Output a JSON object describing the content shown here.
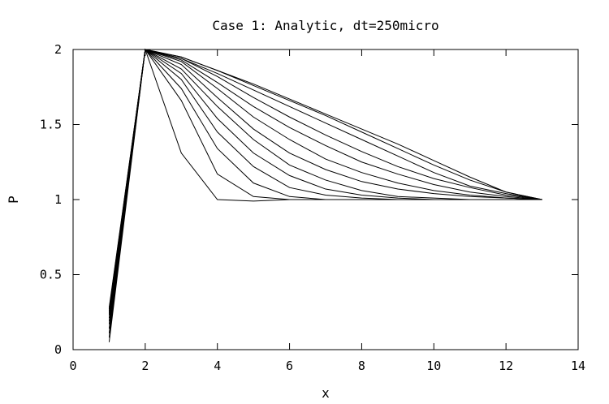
{
  "chart_data": {
    "type": "line",
    "title": "Case 1: Analytic, dt=250micro",
    "xlabel": "x",
    "ylabel": "P",
    "xlim": [
      0,
      14
    ],
    "ylim": [
      0,
      2
    ],
    "xticks": [
      0,
      2,
      4,
      6,
      8,
      10,
      12,
      14
    ],
    "xtick_labels": [
      "0",
      "2",
      "4",
      "6",
      "8",
      "10",
      "12",
      "14"
    ],
    "yticks": [
      0,
      0.5,
      1,
      1.5,
      2
    ],
    "ytick_labels": [
      "0",
      "0.5",
      "1",
      "1.5",
      "2"
    ],
    "grid": false,
    "legend": "none",
    "line_color": "#000000",
    "series": [
      {
        "x": [
          1,
          2,
          3,
          4,
          5,
          6,
          7,
          8,
          9,
          10,
          11,
          12,
          13
        ],
        "y": [
          0.05,
          2.0,
          1.31,
          1.0,
          0.99,
          1.0,
          1.0,
          1.0,
          1.0,
          1.0,
          1.0,
          1.0,
          1.0
        ]
      },
      {
        "x": [
          1,
          2,
          3,
          4,
          5,
          6,
          7,
          8,
          9,
          10,
          11,
          12,
          13
        ],
        "y": [
          0.08,
          2.0,
          1.66,
          1.17,
          1.02,
          1.0,
          1.0,
          1.0,
          1.0,
          1.0,
          1.0,
          1.0,
          1.0
        ]
      },
      {
        "x": [
          1,
          2,
          3,
          4,
          5,
          6,
          7,
          8,
          9,
          10,
          11,
          12,
          13
        ],
        "y": [
          0.11,
          2.0,
          1.74,
          1.34,
          1.11,
          1.02,
          1.0,
          1.0,
          1.0,
          1.0,
          1.0,
          1.0,
          1.0
        ]
      },
      {
        "x": [
          1,
          2,
          3,
          4,
          5,
          6,
          7,
          8,
          9,
          10,
          11,
          12,
          13
        ],
        "y": [
          0.14,
          2.0,
          1.8,
          1.45,
          1.22,
          1.08,
          1.03,
          1.01,
          1.0,
          1.0,
          1.0,
          1.0,
          1.0
        ]
      },
      {
        "x": [
          1,
          2,
          3,
          4,
          5,
          6,
          7,
          8,
          9,
          10,
          11,
          12,
          13
        ],
        "y": [
          0.17,
          2.0,
          1.84,
          1.54,
          1.31,
          1.16,
          1.07,
          1.03,
          1.01,
          1.0,
          1.0,
          1.0,
          1.0
        ]
      },
      {
        "x": [
          1,
          2,
          3,
          4,
          5,
          6,
          7,
          8,
          9,
          10,
          11,
          12,
          13
        ],
        "y": [
          0.19,
          2.0,
          1.87,
          1.62,
          1.4,
          1.23,
          1.13,
          1.06,
          1.02,
          1.01,
          1.0,
          1.0,
          1.0
        ]
      },
      {
        "x": [
          1,
          2,
          3,
          4,
          5,
          6,
          7,
          8,
          9,
          10,
          11,
          12,
          13
        ],
        "y": [
          0.21,
          2.0,
          1.9,
          1.68,
          1.47,
          1.31,
          1.2,
          1.12,
          1.07,
          1.04,
          1.02,
          1.01,
          1.0
        ]
      },
      {
        "x": [
          1,
          2,
          3,
          4,
          5,
          6,
          7,
          8,
          9,
          10,
          11,
          12,
          13
        ],
        "y": [
          0.23,
          2.0,
          1.92,
          1.74,
          1.55,
          1.4,
          1.27,
          1.18,
          1.11,
          1.06,
          1.03,
          1.01,
          1.0
        ]
      },
      {
        "x": [
          1,
          2,
          3,
          4,
          5,
          6,
          7,
          8,
          9,
          10,
          11,
          12,
          13
        ],
        "y": [
          0.24,
          2.0,
          1.93,
          1.78,
          1.62,
          1.48,
          1.36,
          1.25,
          1.17,
          1.1,
          1.05,
          1.02,
          1.0
        ]
      },
      {
        "x": [
          1,
          2,
          3,
          4,
          5,
          6,
          7,
          8,
          9,
          10,
          11,
          12,
          13
        ],
        "y": [
          0.25,
          2.0,
          1.94,
          1.82,
          1.68,
          1.55,
          1.43,
          1.32,
          1.22,
          1.14,
          1.08,
          1.03,
          1.0
        ]
      },
      {
        "x": [
          1,
          2,
          3,
          4,
          5,
          6,
          7,
          8,
          9,
          10,
          11,
          12,
          13
        ],
        "y": [
          0.26,
          2.0,
          1.94,
          1.84,
          1.73,
          1.62,
          1.51,
          1.4,
          1.29,
          1.18,
          1.09,
          1.04,
          1.0
        ]
      },
      {
        "x": [
          1,
          2,
          3,
          4,
          5,
          6,
          7,
          8,
          9,
          10,
          11,
          12,
          13
        ],
        "y": [
          0.27,
          2.0,
          1.95,
          1.86,
          1.76,
          1.66,
          1.56,
          1.45,
          1.34,
          1.23,
          1.13,
          1.05,
          1.0
        ]
      },
      {
        "x": [
          1,
          2,
          3,
          4,
          5,
          6,
          7,
          8,
          9,
          10,
          11,
          12,
          13
        ],
        "y": [
          0.28,
          2.0,
          1.95,
          1.86,
          1.77,
          1.67,
          1.57,
          1.47,
          1.37,
          1.26,
          1.15,
          1.05,
          1.0
        ]
      }
    ]
  }
}
